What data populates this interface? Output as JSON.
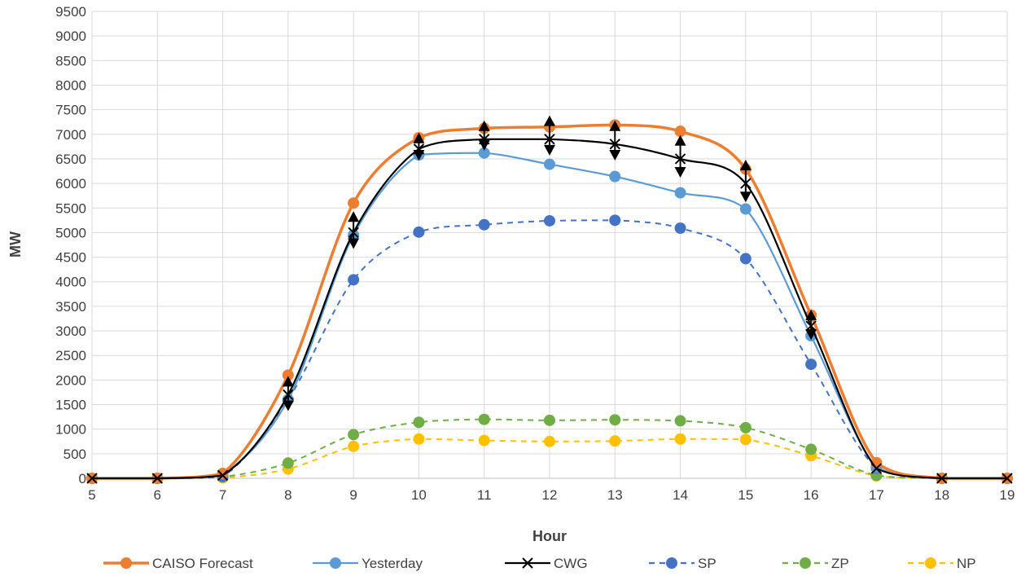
{
  "chart_data": {
    "type": "line",
    "title": "",
    "xlabel": "Hour",
    "ylabel": "MW",
    "x": [
      5,
      6,
      7,
      8,
      9,
      10,
      11,
      12,
      13,
      14,
      15,
      16,
      17,
      18,
      19
    ],
    "xlim": [
      5,
      19
    ],
    "ylim": [
      0,
      9500
    ],
    "ytick_step": 500,
    "grid": true,
    "legend_position": "bottom",
    "series": [
      {
        "name": "CAISO Forecast",
        "color": "#ED7D31",
        "style": "solid",
        "marker": "circle",
        "values": [
          0,
          0,
          100,
          2100,
          5600,
          6930,
          7120,
          7150,
          7190,
          7060,
          6290,
          3320,
          320,
          0,
          0
        ]
      },
      {
        "name": "Yesterday",
        "color": "#5B9BD5",
        "style": "solid",
        "marker": "circle",
        "values": [
          0,
          0,
          90,
          1600,
          4950,
          6580,
          6620,
          6390,
          6140,
          5810,
          5480,
          2900,
          230,
          0,
          0
        ]
      },
      {
        "name": "CWG",
        "color": "#000000",
        "style": "solid",
        "marker": "x",
        "values": [
          0,
          0,
          60,
          1700,
          5000,
          6700,
          6900,
          6900,
          6800,
          6500,
          6000,
          3100,
          200,
          0,
          0
        ],
        "error_up": [
          0,
          0,
          0,
          350,
          400,
          300,
          350,
          450,
          450,
          450,
          450,
          300,
          0,
          0,
          0
        ],
        "error_down": [
          0,
          0,
          0,
          300,
          300,
          200,
          200,
          300,
          300,
          350,
          350,
          250,
          0,
          0,
          0
        ]
      },
      {
        "name": "SP",
        "color": "#4472C4",
        "style": "dashed",
        "marker": "circle",
        "values": [
          0,
          0,
          40,
          1600,
          4040,
          5010,
          5160,
          5240,
          5250,
          5090,
          4470,
          2320,
          210,
          0,
          0
        ]
      },
      {
        "name": "ZP",
        "color": "#70AD47",
        "style": "dashed",
        "marker": "circle",
        "values": [
          0,
          0,
          30,
          310,
          890,
          1140,
          1200,
          1180,
          1190,
          1170,
          1030,
          590,
          60,
          0,
          0
        ]
      },
      {
        "name": "NP",
        "color": "#FFC000",
        "style": "dashed",
        "marker": "circle",
        "values": [
          0,
          0,
          10,
          190,
          650,
          800,
          770,
          750,
          760,
          800,
          790,
          460,
          50,
          0,
          0
        ]
      }
    ]
  }
}
